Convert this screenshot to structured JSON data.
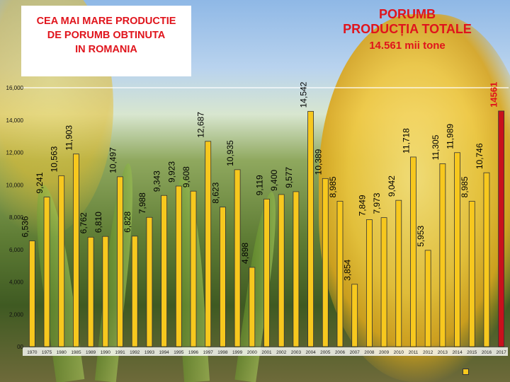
{
  "title_left": "CEA MAI MARE PRODUCTIE\nDE PORUMB OBTINUTA\nIN ROMANIA",
  "title_right": {
    "line1": "PORUMB",
    "line2": "PRODUCȚIA TOTALE",
    "line3": "14.561 mii tone"
  },
  "chart_data": {
    "type": "bar",
    "categories": [
      "1970",
      "1975",
      "1980",
      "1985",
      "1989",
      "1990",
      "1991",
      "1992",
      "1993",
      "1994",
      "1995",
      "1996",
      "1997",
      "1998",
      "1999",
      "2000",
      "2001",
      "2002",
      "2003",
      "2004",
      "2005",
      "2006",
      "2007",
      "2008",
      "2009",
      "2010",
      "2011",
      "2012",
      "2013",
      "2014",
      "2015",
      "2016",
      "2017"
    ],
    "values": [
      6.536,
      9.241,
      10.563,
      11.903,
      6.762,
      6.81,
      10.497,
      6.828,
      7.988,
      9.343,
      9.923,
      9.608,
      12.687,
      8.623,
      10.935,
      4.898,
      9.119,
      9.4,
      9.577,
      14.542,
      10.389,
      8.985,
      3.854,
      7.849,
      7.973,
      9.042,
      11.718,
      5.953,
      11.305,
      11.989,
      8.985,
      10.746,
      14.561
    ],
    "labels": [
      "6,536",
      "9,241",
      "10,563",
      "11,903",
      "6,762",
      "6,810",
      "10,497",
      "6,828",
      "7,988",
      "9,343",
      "9,923",
      "9,608",
      "12,687",
      "8,623",
      "10,935",
      "4,898",
      "9,119",
      "9,400",
      "9,577",
      "14,542",
      "10,389",
      "8,985",
      "3,854",
      "7,849",
      "7,973",
      "9,042",
      "11,718",
      "5,953",
      "11,305",
      "11,989",
      "8,985",
      "10,746",
      "14561"
    ],
    "highlight_index": 32,
    "yticks": [
      "00",
      "2,000",
      "4,000",
      "6,000",
      "8,000",
      "10,000",
      "12,000",
      "14,000",
      "16,000"
    ],
    "ylim": [
      0,
      16
    ],
    "grid": false,
    "colors": {
      "bar": "#f7c81e",
      "bar_stroke": "#333333",
      "highlight": "#c8111c",
      "highlight_label": "#e0141c",
      "title": "#e0141c"
    },
    "legend": {
      "position": "bottom-right",
      "label": ""
    }
  }
}
